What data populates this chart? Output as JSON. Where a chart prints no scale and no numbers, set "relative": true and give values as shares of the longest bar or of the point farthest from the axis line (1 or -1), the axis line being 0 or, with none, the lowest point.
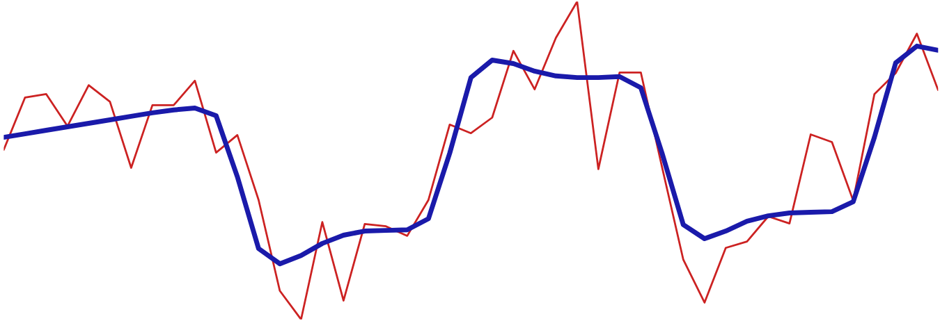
{
  "chart_data": {
    "type": "line",
    "relative": true,
    "categories": [
      null,
      null,
      null,
      null,
      null,
      null,
      null,
      null,
      null,
      null,
      null,
      null,
      null,
      null,
      null,
      null,
      null,
      null,
      null,
      null,
      null,
      null,
      null,
      null,
      null,
      null,
      null,
      null,
      null,
      null,
      null,
      null,
      null,
      null,
      null,
      null,
      null,
      null,
      null,
      null,
      null,
      null,
      null,
      null,
      null
    ],
    "series": [
      {
        "color": "#cc2222",
        "values": [
          0.534,
          0.698,
          0.709,
          0.608,
          0.737,
          0.685,
          0.477,
          0.674,
          0.674,
          0.751,
          0.525,
          0.58,
          0.376,
          0.09,
          0,
          0.306,
          0.059,
          0.3,
          0.293,
          0.263,
          0.376,
          0.613,
          0.586,
          0.635,
          0.845,
          0.724,
          0.886,
          1,
          0.473,
          0.777,
          0.777,
          0.479,
          0.188,
          0.053,
          0.225,
          0.245,
          0.324,
          0.302,
          0.582,
          0.558,
          0.374,
          0.709,
          0.775,
          0.899,
          0.722
        ]
      },
      {
        "color": "#1a1aaa",
        "values": [
          0.573,
          0.584,
          0.595,
          0.606,
          0.617,
          0.628,
          0.639,
          0.65,
          0.659,
          0.665,
          0.641,
          0.449,
          0.223,
          0.175,
          0.201,
          0.239,
          0.265,
          0.278,
          0.28,
          0.282,
          0.317,
          0.523,
          0.761,
          0.816,
          0.805,
          0.781,
          0.766,
          0.761,
          0.761,
          0.764,
          0.729,
          0.523,
          0.298,
          0.254,
          0.278,
          0.309,
          0.326,
          0.335,
          0.337,
          0.339,
          0.37,
          0.573,
          0.807,
          0.86,
          0.847
        ]
      }
    ]
  }
}
